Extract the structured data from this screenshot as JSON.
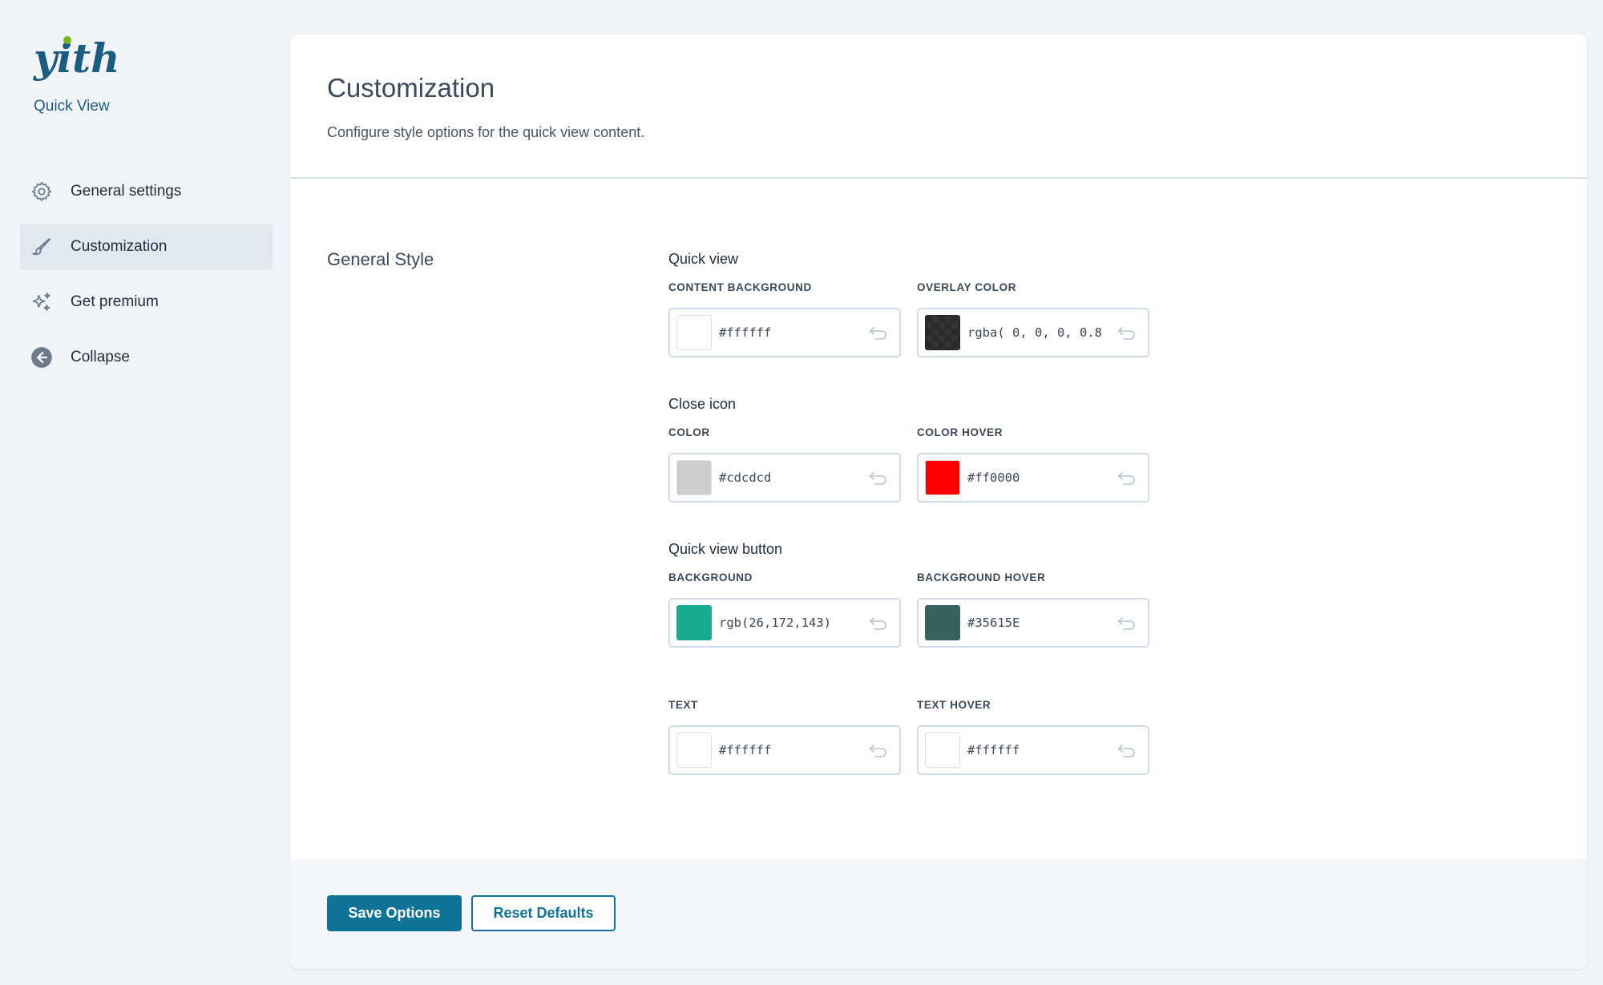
{
  "sidebar": {
    "logo_text": "yith",
    "product_name": "Quick View",
    "items": [
      {
        "label": "General settings",
        "icon": "gear-icon",
        "active": false
      },
      {
        "label": "Customization",
        "icon": "brush-icon",
        "active": true
      },
      {
        "label": "Get premium",
        "icon": "sparkles-icon",
        "active": false
      },
      {
        "label": "Collapse",
        "icon": "arrow-left-circle-icon",
        "active": false
      }
    ]
  },
  "header": {
    "title": "Customization",
    "description": "Configure style options for the quick view content."
  },
  "section": {
    "title": "General Style",
    "groups": [
      {
        "title": "Quick view",
        "fields": [
          {
            "label": "CONTENT BACKGROUND",
            "value": "#ffffff",
            "swatch": "#ffffff"
          },
          {
            "label": "OVERLAY COLOR",
            "value": "rgba( 0, 0, 0, 0.8",
            "swatch": "rgba(0,0,0,0.8)"
          }
        ]
      },
      {
        "title": "Close icon",
        "fields": [
          {
            "label": "COLOR",
            "value": "#cdcdcd",
            "swatch": "#cdcdcd"
          },
          {
            "label": "COLOR HOVER",
            "value": "#ff0000",
            "swatch": "#ff0000"
          }
        ]
      },
      {
        "title": "Quick view button",
        "fields": [
          {
            "label": "BACKGROUND",
            "value": "rgb(26,172,143)",
            "swatch": "#1aac8f"
          },
          {
            "label": "BACKGROUND HOVER",
            "value": "#35615E",
            "swatch": "#35615E"
          }
        ]
      },
      {
        "title": "",
        "fields": [
          {
            "label": "TEXT",
            "value": "#ffffff",
            "swatch": "#ffffff"
          },
          {
            "label": "TEXT HOVER",
            "value": "#ffffff",
            "swatch": "#ffffff"
          }
        ]
      }
    ]
  },
  "footer": {
    "save_label": "Save Options",
    "reset_label": "Reset Defaults"
  },
  "colors": {
    "accent": "#0e7397",
    "brand_dark": "#1b5d7e",
    "brand_green": "#7cb518"
  }
}
